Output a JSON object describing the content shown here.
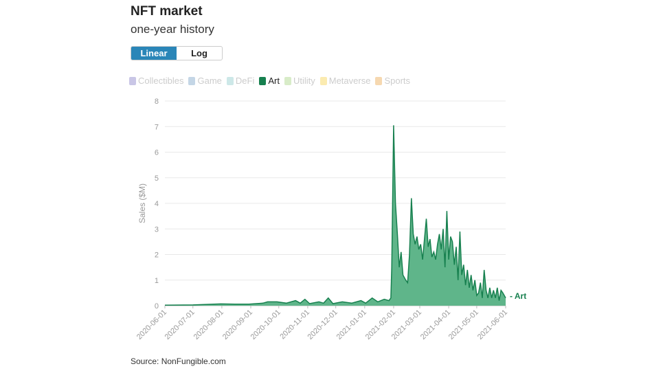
{
  "title": "NFT market",
  "subtitle": "one-year history",
  "toggle": {
    "linear": "Linear",
    "log": "Log",
    "selected": "Linear"
  },
  "source": "Source: NonFungible.com",
  "legend": [
    {
      "label": "Collectibles",
      "color": "#c9c6e6",
      "active": false
    },
    {
      "label": "Game",
      "color": "#c4d6e6",
      "active": false
    },
    {
      "label": "DeFi",
      "color": "#cde8e8",
      "active": false
    },
    {
      "label": "Art",
      "color": "#17804f",
      "active": true
    },
    {
      "label": "Utility",
      "color": "#d8ecc8",
      "active": false
    },
    {
      "label": "Metaverse",
      "color": "#fbebb0",
      "active": false
    },
    {
      "label": "Sports",
      "color": "#f6d8b0",
      "active": false
    }
  ],
  "chart_data": {
    "type": "area",
    "title": "NFT market",
    "ylabel": "Sales ($M)",
    "xlabel": "",
    "ylim": [
      0,
      8
    ],
    "yticks": [
      "0",
      "1",
      "2",
      "3",
      "4",
      "5",
      "6",
      "7",
      "8"
    ],
    "xticks": [
      "2020-06-01",
      "2020-07-01",
      "2020-08-01",
      "2020-09-01",
      "2020-10-01",
      "2020-11-01",
      "2020-12-01",
      "2021-01-01",
      "2021-02-01",
      "2021-03-01",
      "2021-04-01",
      "2021-05-01",
      "2021-06-01"
    ],
    "xtick_days": [
      0,
      30,
      61,
      92,
      122,
      153,
      183,
      214,
      245,
      273,
      304,
      334,
      365
    ],
    "x_start": "2020-06-01",
    "series": [
      {
        "name": "Art",
        "color": "#17804f",
        "fill": "#5fb58a",
        "points": [
          [
            0,
            0.02
          ],
          [
            30,
            0.03
          ],
          [
            45,
            0.05
          ],
          [
            60,
            0.07
          ],
          [
            75,
            0.06
          ],
          [
            90,
            0.06
          ],
          [
            105,
            0.1
          ],
          [
            110,
            0.15
          ],
          [
            120,
            0.15
          ],
          [
            130,
            0.1
          ],
          [
            140,
            0.2
          ],
          [
            145,
            0.1
          ],
          [
            150,
            0.25
          ],
          [
            155,
            0.08
          ],
          [
            165,
            0.15
          ],
          [
            170,
            0.1
          ],
          [
            175,
            0.3
          ],
          [
            180,
            0.08
          ],
          [
            190,
            0.15
          ],
          [
            200,
            0.1
          ],
          [
            210,
            0.2
          ],
          [
            215,
            0.1
          ],
          [
            222,
            0.3
          ],
          [
            228,
            0.15
          ],
          [
            235,
            0.25
          ],
          [
            240,
            0.2
          ],
          [
            242,
            0.3
          ],
          [
            243,
            1.5
          ],
          [
            245,
            7.05
          ],
          [
            247,
            4.0
          ],
          [
            249,
            2.8
          ],
          [
            251,
            1.5
          ],
          [
            253,
            2.1
          ],
          [
            255,
            1.2
          ],
          [
            258,
            1.0
          ],
          [
            260,
            0.9
          ],
          [
            262,
            2.0
          ],
          [
            264,
            4.2
          ],
          [
            266,
            2.8
          ],
          [
            268,
            2.4
          ],
          [
            270,
            2.7
          ],
          [
            272,
            2.2
          ],
          [
            274,
            2.4
          ],
          [
            276,
            1.8
          ],
          [
            278,
            2.6
          ],
          [
            280,
            3.4
          ],
          [
            282,
            2.3
          ],
          [
            284,
            2.6
          ],
          [
            286,
            1.9
          ],
          [
            288,
            2.1
          ],
          [
            290,
            1.8
          ],
          [
            292,
            2.4
          ],
          [
            294,
            2.8
          ],
          [
            296,
            2.2
          ],
          [
            298,
            3.0
          ],
          [
            300,
            1.5
          ],
          [
            302,
            3.7
          ],
          [
            304,
            1.8
          ],
          [
            306,
            2.7
          ],
          [
            308,
            2.5
          ],
          [
            310,
            1.6
          ],
          [
            312,
            2.3
          ],
          [
            314,
            1.0
          ],
          [
            316,
            2.9
          ],
          [
            318,
            1.2
          ],
          [
            320,
            1.6
          ],
          [
            322,
            0.8
          ],
          [
            324,
            1.4
          ],
          [
            326,
            0.7
          ],
          [
            328,
            1.2
          ],
          [
            330,
            0.6
          ],
          [
            332,
            1.0
          ],
          [
            334,
            0.4
          ],
          [
            336,
            0.5
          ],
          [
            338,
            0.9
          ],
          [
            340,
            0.3
          ],
          [
            342,
            1.4
          ],
          [
            344,
            0.6
          ],
          [
            346,
            0.3
          ],
          [
            348,
            0.7
          ],
          [
            350,
            0.3
          ],
          [
            352,
            0.6
          ],
          [
            354,
            0.3
          ],
          [
            356,
            0.7
          ],
          [
            358,
            0.2
          ],
          [
            360,
            0.6
          ],
          [
            362,
            0.5
          ],
          [
            365,
            0.3
          ]
        ]
      }
    ]
  }
}
